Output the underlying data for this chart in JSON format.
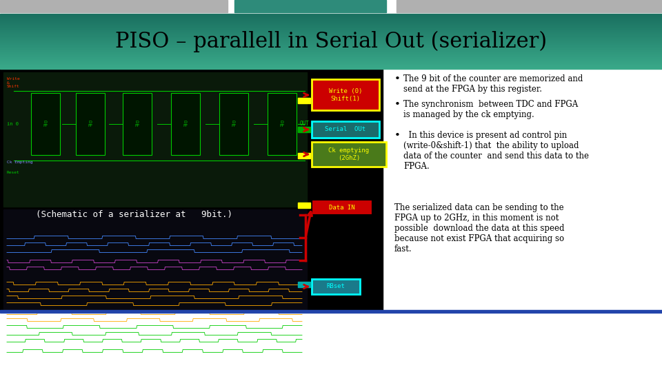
{
  "title": "PISO – parallell in Serial Out (serializer)",
  "title_color": "#000000",
  "header_bg_top": "#3aaa8a",
  "header_bg_bottom": "#1a7060",
  "slide_bg": "#ffffff",
  "subtitle_schematic": "(Schematic of a serializer at   9bit.)",
  "bullet_points": [
    "The 9 bit of the counter are memorized and\nsend at the FPGA by this register.",
    "The synchronism  between TDC and FPGA\nis managed by the ck emptying.",
    "  In this device is present ad control pin\n(write-0&shift-1) that  the ability to upload\ndata of the counter  and send this data to the\nFPGA.",
    "The serialized data can be sending to the\nFPGA up to 2GHz, in this moment is not\npossible  download the data at this speed\nbecause not exist FPGA that acquiring so\nfast."
  ],
  "legend_items": [
    {
      "label": "Write (0)\nShift(1)",
      "bg": "#cc0000",
      "fg": "#ffff00",
      "border": "#ffff00"
    },
    {
      "label": "Serial  OUt",
      "bg": "#1a6b6b",
      "fg": "#00ffff",
      "border": "#00ffff"
    },
    {
      "label": "Ck emptying\n(2GhZ)",
      "bg": "#4a7a1a",
      "fg": "#ffff00",
      "border": "#ffff00"
    },
    {
      "label": "Data IN",
      "bg": "#cc0000",
      "fg": "#ffff00",
      "border": "#000000"
    },
    {
      "label": "RBset",
      "bg": "#1a7a8a",
      "fg": "#00ffff",
      "border": "#00ffff"
    }
  ],
  "arrow_color": "#cc0000",
  "top_bar_color": "#2e8b7a",
  "gray_bar_color": "#b0b0b0",
  "blue_bar_color": "#2244aa"
}
